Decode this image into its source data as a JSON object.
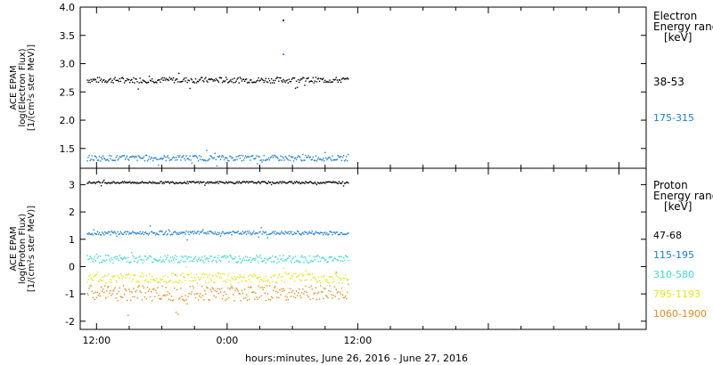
{
  "colors": {
    "axis": "#000000",
    "series": [
      "#000000",
      "#1a7fd0",
      "#3cd8d0",
      "#e2e81a",
      "#e88a1a"
    ]
  },
  "chart_data": [
    {
      "type": "scatter",
      "ylabel_lines": [
        "ACE EPAM",
        "log(Electron Flux)",
        "[1/(cm²s ster MeV)]"
      ],
      "ylim": [
        1.15,
        4.0
      ],
      "xlim_hours": [
        10.5,
        62.5
      ],
      "yticks": [
        "1.5",
        "2.0",
        "2.5",
        "3.0",
        "3.5",
        "4.0"
      ],
      "ytick_values": [
        1.5,
        2.0,
        2.5,
        3.0,
        3.5,
        4.0
      ],
      "legend": {
        "title_lines": [
          "Electron",
          "Energy ranges",
          "[keV]"
        ],
        "entries": [
          "38-53",
          "175-315"
        ]
      },
      "series": [
        {
          "name": "38-53",
          "color": "#000000",
          "level": 2.72,
          "noise": 0.05,
          "outlier_x": 29.1,
          "outlier_y": 3.78
        },
        {
          "name": "175-315",
          "color": "#1a7fd0",
          "level": 1.34,
          "noise": 0.05,
          "outlier_x": 29.1,
          "outlier_y": 3.18
        }
      ]
    },
    {
      "type": "scatter",
      "ylabel_lines": [
        "ACE EPAM",
        "log(Proton Flux)",
        "[1/(cm²s ster MeV)]"
      ],
      "ylim": [
        -2.3,
        3.6
      ],
      "xlim_hours": [
        10.5,
        62.5
      ],
      "yticks": [
        "-2",
        "-1",
        "0",
        "1",
        "2",
        "3"
      ],
      "ytick_values": [
        -2,
        -1,
        0,
        1,
        2,
        3
      ],
      "legend": {
        "title_lines": [
          "Proton",
          "Energy ranges",
          "[keV]"
        ],
        "entries": [
          "47-68",
          "115-195",
          "310-580",
          "795-1193",
          "1060-1900"
        ]
      },
      "series": [
        {
          "name": "47-68",
          "color": "#000000",
          "level": 3.1,
          "noise": 0.04
        },
        {
          "name": "115-195",
          "color": "#1a7fd0",
          "level": 1.25,
          "noise": 0.07
        },
        {
          "name": "310-580",
          "color": "#3cd8d0",
          "level": 0.3,
          "noise": 0.14
        },
        {
          "name": "795-1193",
          "color": "#e2e81a",
          "level": -0.4,
          "noise": 0.18
        },
        {
          "name": "1060-1900",
          "color": "#e88a1a",
          "level": -0.95,
          "noise": 0.28
        }
      ]
    }
  ],
  "x_axis": {
    "ticks": [
      {
        "hour": 12,
        "label": "12:00"
      },
      {
        "hour": 24,
        "label": "0:00"
      },
      {
        "hour": 36,
        "label": "12:00"
      }
    ],
    "data_end_hour": 35.1,
    "title": "hours:minutes, June 26, 2016 - June 27, 2016"
  }
}
